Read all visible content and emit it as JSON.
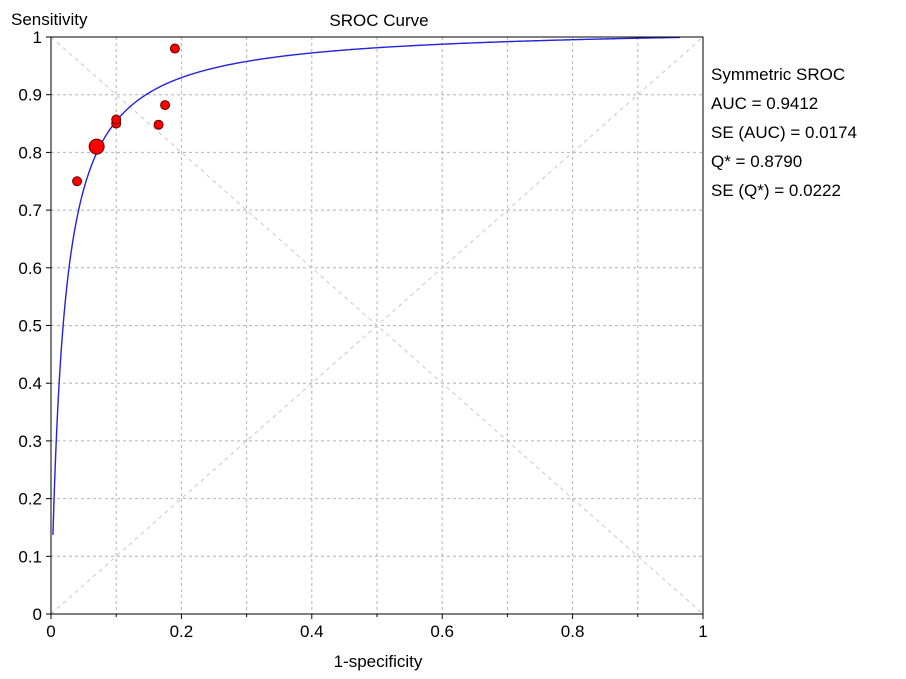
{
  "chart_data": {
    "type": "scatter",
    "title": "SROC Curve",
    "xlabel": "1-specificity",
    "ylabel": "Sensitivity",
    "xlim": [
      0,
      1
    ],
    "ylim": [
      0,
      1
    ],
    "xticks": [
      0,
      0.2,
      0.4,
      0.6,
      0.8,
      1
    ],
    "xtick_labels": [
      "0",
      "0.2",
      "0.4",
      "0.6",
      "0.8",
      "1"
    ],
    "yticks": [
      0,
      0.1,
      0.2,
      0.3,
      0.4,
      0.5,
      0.6,
      0.7,
      0.8,
      0.9,
      1
    ],
    "ytick_labels": [
      "0",
      "0.1",
      "0.2",
      "0.3",
      "0.4",
      "0.5",
      "0.6",
      "0.7",
      "0.8",
      "0.9",
      "1"
    ],
    "grid": true,
    "diagonals": true,
    "points": [
      {
        "x": 0.04,
        "y": 0.75,
        "size": "small"
      },
      {
        "x": 0.07,
        "y": 0.81,
        "size": "large"
      },
      {
        "x": 0.1,
        "y": 0.85,
        "size": "small"
      },
      {
        "x": 0.1,
        "y": 0.857,
        "size": "small"
      },
      {
        "x": 0.165,
        "y": 0.848,
        "size": "small"
      },
      {
        "x": 0.175,
        "y": 0.882,
        "size": "small"
      },
      {
        "x": 0.19,
        "y": 0.98,
        "size": "small"
      }
    ],
    "curve": {
      "model": "symmetric",
      "x_range": [
        0.003,
        0.965
      ]
    },
    "colors": {
      "curve": "#2222dd",
      "point_fill": "#ff0000",
      "point_stroke": "#600000",
      "grid": "#b4b4b4",
      "axis": "#000000"
    }
  },
  "stats": {
    "heading": "Symmetric SROC",
    "auc": "AUC = 0.9412",
    "se_auc": "SE (AUC) = 0.0174",
    "q_star": "Q* = 0.8790",
    "se_q_star": "SE (Q*) = 0.0222"
  }
}
